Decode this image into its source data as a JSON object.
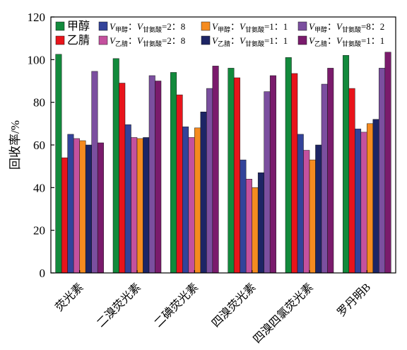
{
  "chart_data": {
    "type": "bar",
    "title": "",
    "xlabel": "",
    "ylabel": "回收率/%",
    "ylim": [
      0,
      120
    ],
    "yticks": [
      0,
      20,
      40,
      60,
      80,
      100,
      120
    ],
    "grid": false,
    "legend_position": "top inside plot, two rows",
    "categories": [
      "荧光素",
      "二溴荧光素",
      "二碘荧光素",
      "四溴荧光素",
      "四溴四氯荧光素",
      "罗丹明B"
    ],
    "series": [
      {
        "name": "甲醇",
        "color": "#128a3c",
        "values": [
          102.5,
          100.5,
          94,
          96,
          101,
          102
        ]
      },
      {
        "name": "乙腈",
        "color": "#e8141b",
        "values": [
          54,
          89,
          83.5,
          91.5,
          93.5,
          86.5
        ]
      },
      {
        "name": "V甲醇：V甘氨酸=2：8",
        "color": "#33439a",
        "values": [
          65,
          69.5,
          68.5,
          53,
          65,
          67.5
        ]
      },
      {
        "name": "V乙腈：V甘氨酸=2：8",
        "color": "#c4519e",
        "values": [
          63,
          63.5,
          63.5,
          44,
          57.5,
          66
        ]
      },
      {
        "name": "V甲醇：V甘氨酸=1：1",
        "color": "#f58b1f",
        "values": [
          62,
          63,
          68,
          40,
          53,
          70
        ]
      },
      {
        "name": "V乙腈：V甘氨酸=1：1",
        "color": "#1d2565",
        "values": [
          60,
          63.5,
          75.5,
          47,
          60,
          72
        ]
      },
      {
        "name": "V甲醇：V甘氨酸=8：2",
        "color": "#7b4f9f",
        "values": [
          94.5,
          92.5,
          86.5,
          85,
          88.5,
          96
        ]
      },
      {
        "name": "V乙腈：V甘氨酸=1：1",
        "color": "#7a1b6c",
        "values": [
          61,
          90,
          97,
          92.5,
          96,
          103.5
        ]
      }
    ]
  }
}
